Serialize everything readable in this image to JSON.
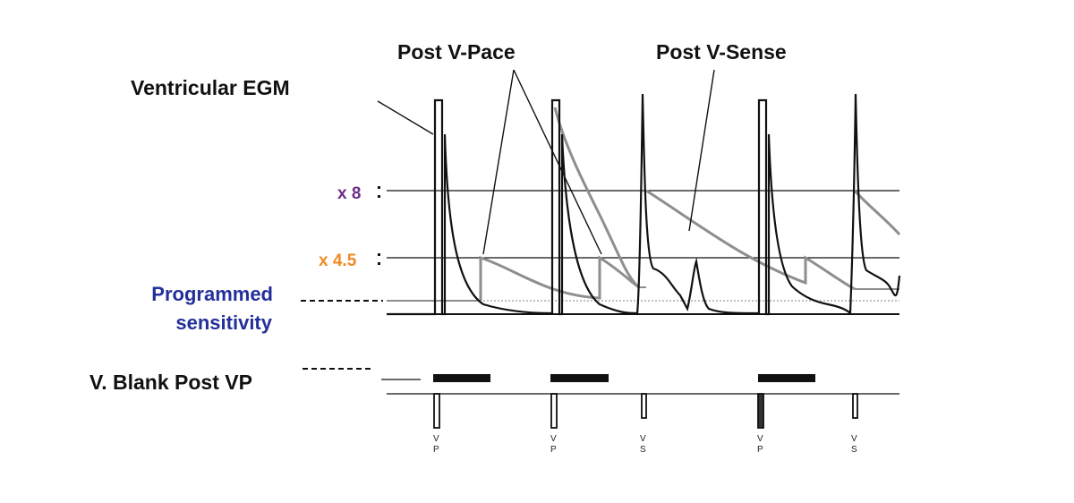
{
  "diagram": {
    "labels": {
      "ventricular_egm": "Ventricular EGM",
      "post_v_pace": "Post V-Pace",
      "post_v_sense": "Post V-Sense",
      "x8": "x 8",
      "x45": "x 4.5",
      "programmed_line1": "Programmed",
      "programmed_line2": "sensitivity",
      "v_blank_post_vp": "V. Blank Post VP"
    },
    "colors": {
      "pace_label": "#f08a24",
      "sense_label": "#7a3a8c",
      "x8_label": "#6b2f86",
      "x45_label": "#f08a24",
      "sensitivity_label": "#23309a",
      "ink": "#111111",
      "threshold": "#8e8e8e"
    },
    "markers": [
      {
        "kind": "pace",
        "l1": "V",
        "l2": "P"
      },
      {
        "kind": "pace",
        "l1": "V",
        "l2": "P"
      },
      {
        "kind": "sense",
        "l1": "V",
        "l2": "S"
      },
      {
        "kind": "pace",
        "l1": "V",
        "l2": "P"
      },
      {
        "kind": "sense",
        "l1": "V",
        "l2": "S"
      }
    ]
  }
}
